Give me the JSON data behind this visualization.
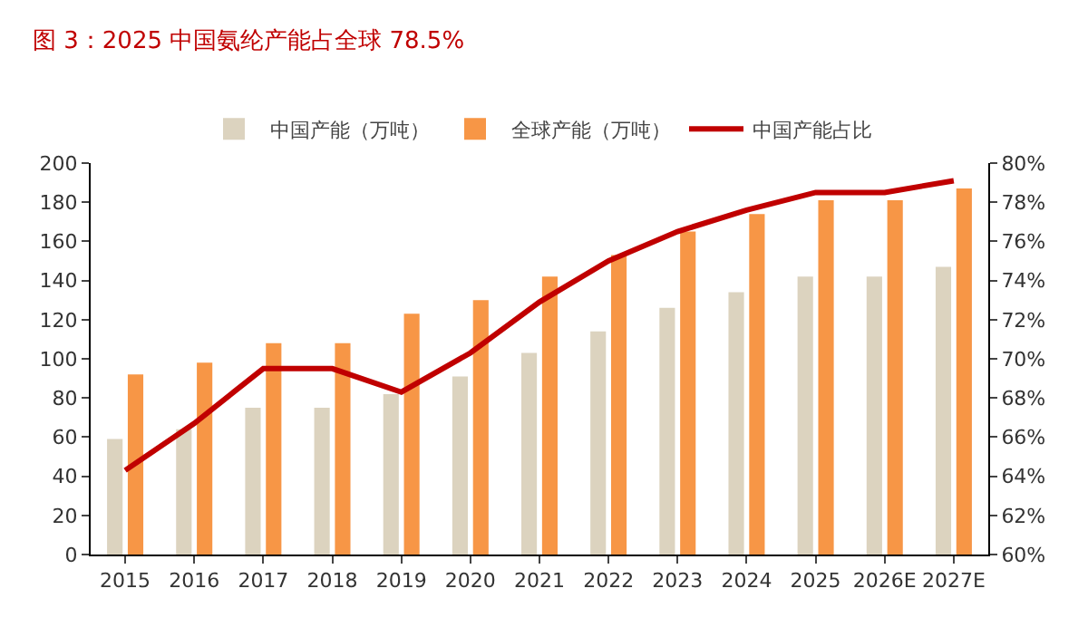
{
  "chart_data": {
    "type": "bar",
    "title": "图 3：2025 中国氨纶产能占全球 78.5%",
    "categories": [
      "2015",
      "2016",
      "2017",
      "2018",
      "2019",
      "2020",
      "2021",
      "2022",
      "2023",
      "2024",
      "2025",
      "2026E",
      "2027E"
    ],
    "series": [
      {
        "name": "中国产能（万吨）",
        "color": "#dcd3bf",
        "values": [
          59,
          64,
          75,
          75,
          82,
          91,
          103,
          114,
          126,
          134,
          142,
          142,
          147
        ]
      },
      {
        "name": "全球产能（万吨）",
        "color": "#f79646",
        "values": [
          92,
          98,
          108,
          108,
          123,
          130,
          142,
          153,
          165,
          174,
          181,
          181,
          187
        ]
      },
      {
        "name": "中国产能占比",
        "type": "line",
        "axis": "y2",
        "color": "#c00000",
        "values": [
          64.3,
          66.7,
          69.5,
          69.5,
          68.3,
          70.3,
          72.9,
          75.0,
          76.5,
          77.6,
          78.5,
          78.5,
          79.1
        ]
      }
    ],
    "ylim": [
      0,
      200
    ],
    "yticks": [
      0,
      20,
      40,
      60,
      80,
      100,
      120,
      140,
      160,
      180,
      200
    ],
    "y2lim": [
      60,
      80
    ],
    "y2ticks": [
      {
        "value": 60,
        "label": "60%"
      },
      {
        "value": 62,
        "label": "62%"
      },
      {
        "value": 64,
        "label": "64%"
      },
      {
        "value": 66,
        "label": "66%"
      },
      {
        "value": 68,
        "label": "68%"
      },
      {
        "value": 70,
        "label": "70%"
      },
      {
        "value": 72,
        "label": "72%"
      },
      {
        "value": 74,
        "label": "74%"
      },
      {
        "value": 76,
        "label": "76%"
      },
      {
        "value": 78,
        "label": "78%"
      },
      {
        "value": 80,
        "label": "80%"
      }
    ],
    "grid": false,
    "legend": "top",
    "marker": "none",
    "line_style": "solid"
  }
}
